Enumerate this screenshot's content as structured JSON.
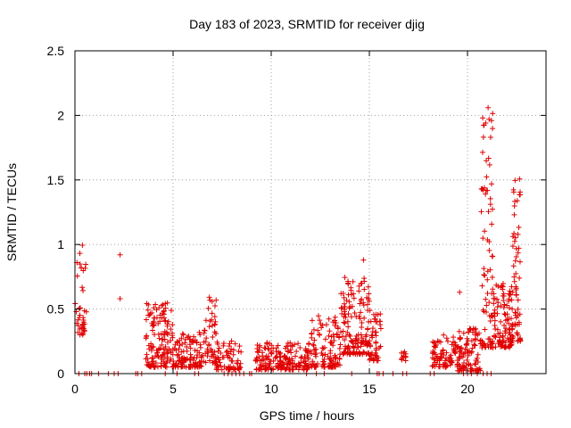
{
  "chart_data": {
    "type": "scatter",
    "title": "Day 183 of 2023, SRMTID for receiver djig",
    "xlabel": "GPS time / hours",
    "ylabel": "SRMTID / TECUs",
    "xlim": [
      0,
      24
    ],
    "ylim": [
      0,
      2.5
    ],
    "xticks": [
      0,
      5,
      10,
      15,
      20
    ],
    "xtick_labels": [
      "0",
      "5",
      "10",
      "15",
      "20"
    ],
    "yticks": [
      0,
      0.5,
      1,
      1.5,
      2,
      2.5
    ],
    "ytick_labels": [
      "0",
      "0.5",
      "1",
      "1.5",
      "2",
      "2.5"
    ],
    "grid": true,
    "marker": "+",
    "color": "#e00000",
    "series": [
      {
        "name": "SRMTID",
        "segments": [
          {
            "x_start": 0.0,
            "x_end": 0.6,
            "y_min": 0.3,
            "y_max": 1.0,
            "count": 40
          },
          {
            "x_start": 3.6,
            "x_end": 5.0,
            "y_min": 0.05,
            "y_max": 0.55,
            "count": 140
          },
          {
            "x_start": 5.0,
            "x_end": 6.5,
            "y_min": 0.05,
            "y_max": 0.32,
            "count": 110
          },
          {
            "x_start": 6.5,
            "x_end": 7.2,
            "y_min": 0.08,
            "y_max": 0.6,
            "count": 50
          },
          {
            "x_start": 7.2,
            "x_end": 8.5,
            "y_min": 0.03,
            "y_max": 0.28,
            "count": 70
          },
          {
            "x_start": 9.2,
            "x_end": 12.0,
            "y_min": 0.03,
            "y_max": 0.25,
            "count": 190
          },
          {
            "x_start": 12.0,
            "x_end": 13.5,
            "y_min": 0.05,
            "y_max": 0.45,
            "count": 110
          },
          {
            "x_start": 13.5,
            "x_end": 15.0,
            "y_min": 0.15,
            "y_max": 0.75,
            "count": 150
          },
          {
            "x_start": 15.0,
            "x_end": 15.6,
            "y_min": 0.1,
            "y_max": 0.5,
            "count": 50
          },
          {
            "x_start": 16.6,
            "x_end": 16.9,
            "y_min": 0.1,
            "y_max": 0.2,
            "count": 12
          },
          {
            "x_start": 18.2,
            "x_end": 19.5,
            "y_min": 0.05,
            "y_max": 0.3,
            "count": 80
          },
          {
            "x_start": 19.5,
            "x_end": 20.7,
            "y_min": 0.02,
            "y_max": 0.35,
            "count": 100
          },
          {
            "x_start": 20.7,
            "x_end": 21.3,
            "y_min": 0.2,
            "y_max": 2.05,
            "count": 80
          },
          {
            "x_start": 21.3,
            "x_end": 22.3,
            "y_min": 0.2,
            "y_max": 0.7,
            "count": 110
          },
          {
            "x_start": 22.3,
            "x_end": 22.7,
            "y_min": 0.25,
            "y_max": 1.6,
            "count": 60
          }
        ],
        "outliers": [
          {
            "x": 2.3,
            "y": 0.92
          },
          {
            "x": 2.3,
            "y": 0.58
          },
          {
            "x": 14.7,
            "y": 0.88
          },
          {
            "x": 21.05,
            "y": 2.06
          },
          {
            "x": 21.1,
            "y": 1.97
          },
          {
            "x": 19.6,
            "y": 0.63
          }
        ],
        "zero_values_x": [
          0.2,
          0.5,
          0.6,
          0.75,
          0.85,
          1.2,
          1.7,
          2.0,
          2.2,
          3.1,
          3.2,
          3.4,
          4.6,
          5.2,
          6.1,
          6.3,
          7.6,
          7.8,
          8.0,
          8.2,
          8.4,
          8.6,
          8.9,
          9.0,
          11.8,
          12.3,
          12.7,
          14.1,
          15.4,
          15.5,
          15.7,
          16.2,
          16.7,
          16.9,
          18.1,
          18.3,
          19.8,
          20.0,
          20.2,
          20.5,
          20.8,
          21.0,
          21.2
        ]
      }
    ]
  }
}
